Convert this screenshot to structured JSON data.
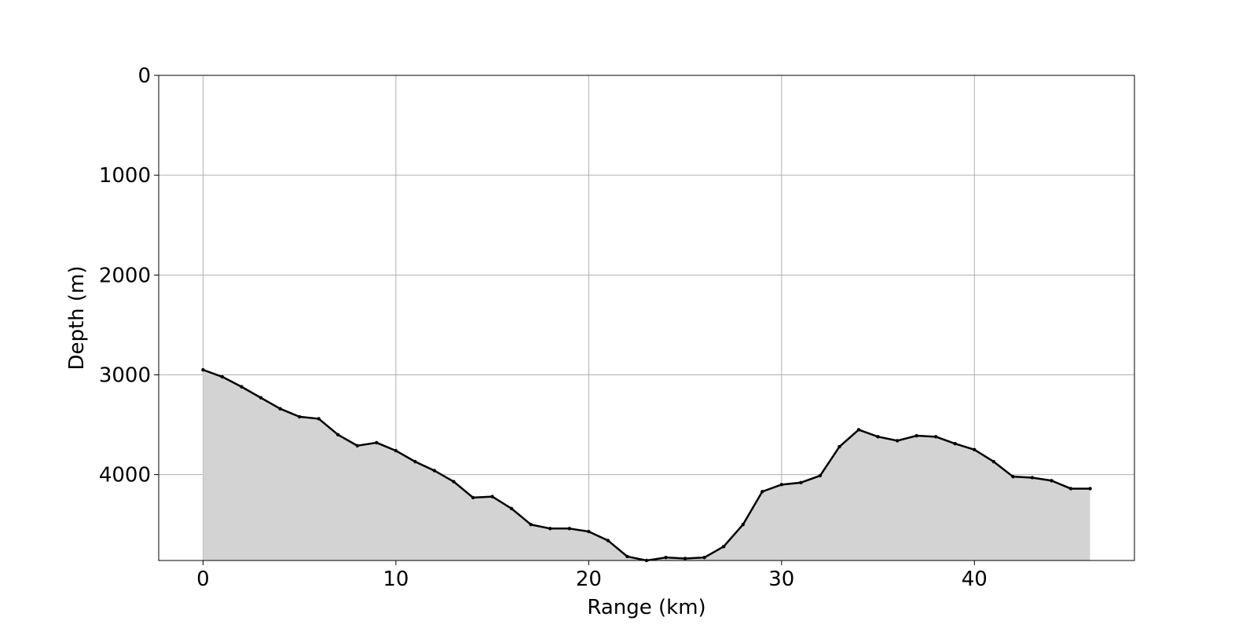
{
  "chart_data": {
    "type": "area",
    "title": "",
    "xlabel": "Range (km)",
    "ylabel": "Depth (m)",
    "xlim": [
      -2.3,
      48.3
    ],
    "ylim": [
      4860,
      0
    ],
    "y_inverted": true,
    "grid": true,
    "legend": "none",
    "x_ticks": [
      0,
      10,
      20,
      30,
      40
    ],
    "y_ticks": [
      0,
      1000,
      2000,
      3000,
      4000
    ],
    "x_tick_labels": [
      "0",
      "10",
      "20",
      "30",
      "40"
    ],
    "y_tick_labels": [
      "0",
      "1000",
      "2000",
      "3000",
      "4000"
    ],
    "x": [
      0,
      1,
      2,
      3,
      4,
      5,
      6,
      7,
      8,
      9,
      10,
      11,
      12,
      13,
      14,
      15,
      16,
      17,
      18,
      19,
      20,
      21,
      22,
      23,
      24,
      25,
      26,
      27,
      28,
      29,
      30,
      31,
      32,
      33,
      34,
      35,
      36,
      37,
      38,
      39,
      40,
      41,
      42,
      43,
      44,
      45,
      46
    ],
    "y": [
      2950,
      3020,
      3120,
      3230,
      3340,
      3420,
      3440,
      3600,
      3710,
      3680,
      3760,
      3870,
      3960,
      4070,
      4230,
      4220,
      4340,
      4500,
      4540,
      4540,
      4570,
      4660,
      4820,
      4860,
      4830,
      4840,
      4830,
      4720,
      4500,
      4170,
      4100,
      4080,
      4010,
      3720,
      3550,
      3620,
      3660,
      3610,
      3620,
      3690,
      3750,
      3870,
      4020,
      4030,
      4060,
      4140,
      4140
    ],
    "colors": {
      "line": "#000000",
      "fill": "#d3d3d3",
      "grid": "#b0b0b0",
      "axes": "#000000"
    }
  }
}
